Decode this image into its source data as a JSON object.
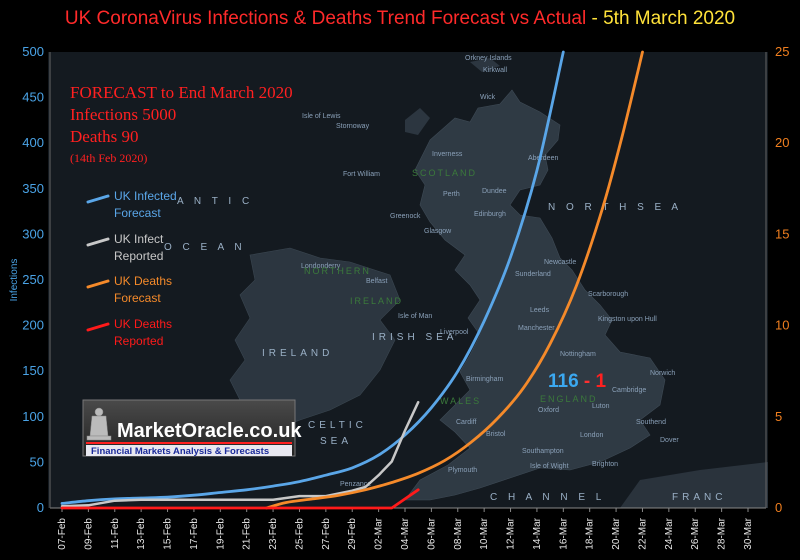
{
  "title": {
    "main": "UK CoronaVirus Infections & Deaths Trend Forecast vs Actual",
    "separator": " - ",
    "date": "5th March 2020"
  },
  "forecast_box": {
    "line1": "FORECAST to End March 2020",
    "line2": "Infections  5000",
    "line3": "Deaths 90",
    "line4": "(14th Feb 2020)"
  },
  "annotation": {
    "infected": "116",
    "dash": " - ",
    "deaths": "1"
  },
  "watermark": {
    "brand": "MarketOracle.co.uk",
    "tagline": "Financial Markets Analysis & Forecasts"
  },
  "map_labels": {
    "orkney": "Orkney Islands",
    "kirkwall": "Kirkwall",
    "wick": "Wick",
    "isle_of_lewis": "Isle of Lewis",
    "stornoway": "Stornoway",
    "inverness": "Inverness",
    "aberdeen": "Aberdeen",
    "scotland": "SCOTLAND",
    "fort_william": "Fort William",
    "dundee": "Dundee",
    "perth": "Perth",
    "edinburgh": "Edinburgh",
    "glasgow": "Glasgow",
    "greenock": "Greenock",
    "north_sea": "N O R T H   S E A",
    "atlantic": "A N T I C",
    "ocean": "O C E A N",
    "newcastle": "Newcastle",
    "sunderland": "Sunderland",
    "londonderry": "Londonderry",
    "northern": "NORTHERN",
    "ireland_ni": "IRELAND",
    "belfast": "Belfast",
    "scarborough": "Scarborough",
    "kingston": "Kingston upon Hull",
    "isle_of_man": "Isle of Man",
    "leeds": "Leeds",
    "liverpool": "Liverpool",
    "manchester": "Manchester",
    "irish_sea": "IRISH SEA",
    "ireland": "IRELAND",
    "nottingham": "Nottingham",
    "birmingham": "Birmingham",
    "wales": "WALES",
    "england": "ENGLAND",
    "cambridge": "Cambridge",
    "norwich": "Norwich",
    "oxford": "Oxford",
    "luton": "Luton",
    "cardiff": "Cardiff",
    "bristol": "Bristol",
    "london": "London",
    "southend": "Southend",
    "dover": "Dover",
    "celtic": "CELTIC",
    "sea": "SEA",
    "plymouth": "Plymouth",
    "southampton": "Southampton",
    "isle_of_wight": "Isle of Wight",
    "brighton": "Brighton",
    "penzance": "Penzance",
    "channel": "C H A N N E L",
    "france": "FRANC"
  },
  "colors": {
    "infected_forecast": "#5aa6e8",
    "infected_reported": "#c8c8c8",
    "deaths_forecast": "#f58a2a",
    "deaths_reported": "#ff1a1a",
    "left_axis": "#4aa3e6",
    "right_axis": "#f07f1f",
    "title_red": "#ff2a2a",
    "title_yellow": "#ffe23a"
  },
  "chart_data": {
    "type": "line",
    "title": "UK CoronaVirus Infections & Deaths Trend Forecast vs Actual - 5th March 2020",
    "ylabel": "Infections",
    "y2label": "",
    "ylim": [
      0,
      500
    ],
    "y2lim": [
      0,
      25
    ],
    "yticks": [
      0,
      50,
      100,
      150,
      200,
      250,
      300,
      350,
      400,
      450,
      500
    ],
    "y2ticks": [
      0,
      5,
      10,
      15,
      20,
      25
    ],
    "x_start_day": 7,
    "x_end_day": 30,
    "xtick_labels": [
      "07-Feb",
      "09-Feb",
      "11-Feb",
      "13-Feb",
      "15-Feb",
      "17-Feb",
      "19-Feb",
      "21-Feb",
      "23-Feb",
      "25-Feb",
      "27-Feb",
      "29-Feb",
      "02-Mar",
      "04-Mar",
      "06-Mar",
      "08-Mar",
      "10-Mar",
      "12-Mar",
      "14-Mar",
      "16-Mar",
      "18-Mar",
      "20-Mar",
      "22-Mar",
      "24-Mar",
      "26-Mar",
      "28-Mar",
      "30-Mar"
    ],
    "xtick_days": [
      7,
      9,
      11,
      13,
      15,
      17,
      19,
      21,
      23,
      25,
      27,
      29,
      31,
      33,
      35,
      37,
      39,
      41,
      43,
      45,
      47,
      49,
      51,
      53,
      55,
      57,
      59
    ],
    "legend_position": "left",
    "series": [
      {
        "name": "UK Infected Forecast",
        "label_lines": [
          "UK Infected",
          "Forecast"
        ],
        "axis": "left",
        "color_key": "infected_forecast",
        "points": [
          [
            7,
            5
          ],
          [
            9,
            8
          ],
          [
            11,
            10
          ],
          [
            13,
            11
          ],
          [
            15,
            12
          ],
          [
            17,
            14
          ],
          [
            19,
            17
          ],
          [
            21,
            20
          ],
          [
            23,
            24
          ],
          [
            25,
            29
          ],
          [
            27,
            36
          ],
          [
            29,
            44
          ],
          [
            31,
            58
          ],
          [
            33,
            80
          ],
          [
            35,
            110
          ],
          [
            37,
            150
          ],
          [
            39,
            205
          ],
          [
            41,
            275
          ],
          [
            43,
            370
          ],
          [
            45,
            500
          ]
        ]
      },
      {
        "name": "UK Infect Reported",
        "label_lines": [
          "UK Infect",
          "Reported"
        ],
        "axis": "left",
        "color_key": "infected_reported",
        "points": [
          [
            7,
            2
          ],
          [
            9,
            3
          ],
          [
            11,
            8
          ],
          [
            13,
            9
          ],
          [
            15,
            9
          ],
          [
            17,
            9
          ],
          [
            19,
            9
          ],
          [
            21,
            9
          ],
          [
            23,
            9
          ],
          [
            25,
            13
          ],
          [
            27,
            13
          ],
          [
            29,
            19
          ],
          [
            30,
            23
          ],
          [
            31,
            36
          ],
          [
            32,
            51
          ],
          [
            33,
            85
          ],
          [
            34,
            116
          ]
        ]
      },
      {
        "name": "UK Deaths Forecast",
        "label_lines": [
          "UK Deaths",
          "Forecast"
        ],
        "axis": "right",
        "color_key": "deaths_forecast",
        "points": [
          [
            22.5,
            0
          ],
          [
            24,
            0.3
          ],
          [
            26,
            0.5
          ],
          [
            28,
            0.7
          ],
          [
            30,
            1.0
          ],
          [
            32,
            1.4
          ],
          [
            34,
            1.9
          ],
          [
            36,
            2.6
          ],
          [
            38,
            3.6
          ],
          [
            40,
            4.9
          ],
          [
            42,
            6.6
          ],
          [
            44,
            9.0
          ],
          [
            46,
            12.2
          ],
          [
            48,
            16.5
          ],
          [
            49.5,
            20.5
          ],
          [
            51,
            25
          ]
        ]
      },
      {
        "name": "UK Deaths Reported",
        "label_lines": [
          "UK Deaths",
          "Reported"
        ],
        "axis": "right",
        "color_key": "deaths_reported",
        "points": [
          [
            7,
            0
          ],
          [
            32,
            0
          ],
          [
            33,
            0.5
          ],
          [
            34,
            1
          ]
        ]
      }
    ]
  }
}
